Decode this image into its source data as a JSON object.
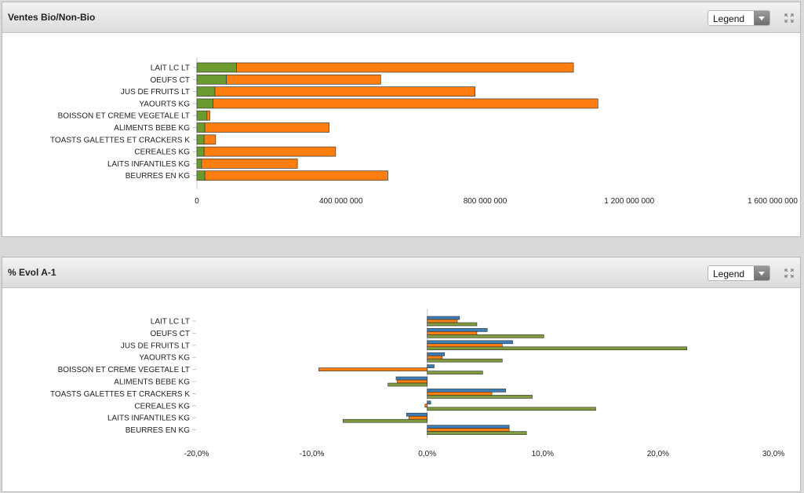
{
  "panels": [
    {
      "title": "Ventes Bio/Non-Bio",
      "legend_label": "Legend"
    },
    {
      "title": "% Evol A-1",
      "legend_label": "Legend"
    }
  ],
  "colors": {
    "green": "#6b9a2e",
    "orange": "#fe7f0f",
    "blue": "#3d7eb8",
    "olive": "#7f9a3f"
  },
  "chart_data": [
    {
      "type": "bar",
      "orientation": "horizontal",
      "stacked": true,
      "categories": [
        "LAIT LC LT",
        "OEUFS CT",
        "JUS DE FRUITS LT",
        "YAOURTS KG",
        "BOISSON ET CREME VEGETALE LT",
        "ALIMENTS BEBE KG",
        "TOASTS GALETTES ET CRACKERS K",
        "CEREALES KG",
        "LAITS INFANTILES KG",
        "BEURRES EN KG"
      ],
      "series": [
        {
          "values": [
            110000000,
            82000000,
            50000000,
            45000000,
            28000000,
            22000000,
            20000000,
            20000000,
            13000000,
            22000000
          ],
          "color": "#6b9a2e"
        },
        {
          "values": [
            935000000,
            428000000,
            722000000,
            1068000000,
            8000000,
            345000000,
            32000000,
            365000000,
            266000000,
            508000000
          ],
          "color": "#fe7f0f"
        }
      ],
      "xlim": [
        0,
        1600000000
      ],
      "xticks": [
        0,
        400000000,
        800000000,
        1200000000,
        1600000000
      ],
      "xtick_labels": [
        "0",
        "400 000 000",
        "800 000 000",
        "1 200 000 000",
        "1 600 000 000"
      ],
      "grid": false
    },
    {
      "type": "bar",
      "orientation": "horizontal",
      "stacked": false,
      "categories": [
        "LAIT LC LT",
        "OEUFS CT",
        "JUS DE FRUITS LT",
        "YAOURTS KG",
        "BOISSON ET CREME VEGETALE LT",
        "ALIMENTS BEBE KG",
        "TOASTS GALETTES ET CRACKERS K",
        "CEREALES KG",
        "LAITS INFANTILES KG",
        "BEURRES EN KG"
      ],
      "series": [
        {
          "values": [
            2.8,
            5.2,
            7.4,
            1.5,
            0.6,
            -2.7,
            6.8,
            0.3,
            -1.8,
            7.1
          ],
          "color": "#3d7eb8"
        },
        {
          "values": [
            2.6,
            4.3,
            6.5,
            1.3,
            -9.4,
            -2.6,
            5.6,
            -0.2,
            -1.6,
            7.1
          ],
          "color": "#fe7f0f"
        },
        {
          "values": [
            4.3,
            10.1,
            22.5,
            6.5,
            4.8,
            -3.4,
            9.1,
            14.6,
            -7.3,
            8.6
          ],
          "color": "#7f9a3f"
        }
      ],
      "xlim": [
        -20,
        30
      ],
      "xticks": [
        -20,
        -10,
        0,
        10,
        20,
        30
      ],
      "xtick_labels": [
        "-20,0%",
        "-10,0%",
        "0,0%",
        "10,0%",
        "20,0%",
        "30,0%"
      ],
      "grid": false
    }
  ]
}
